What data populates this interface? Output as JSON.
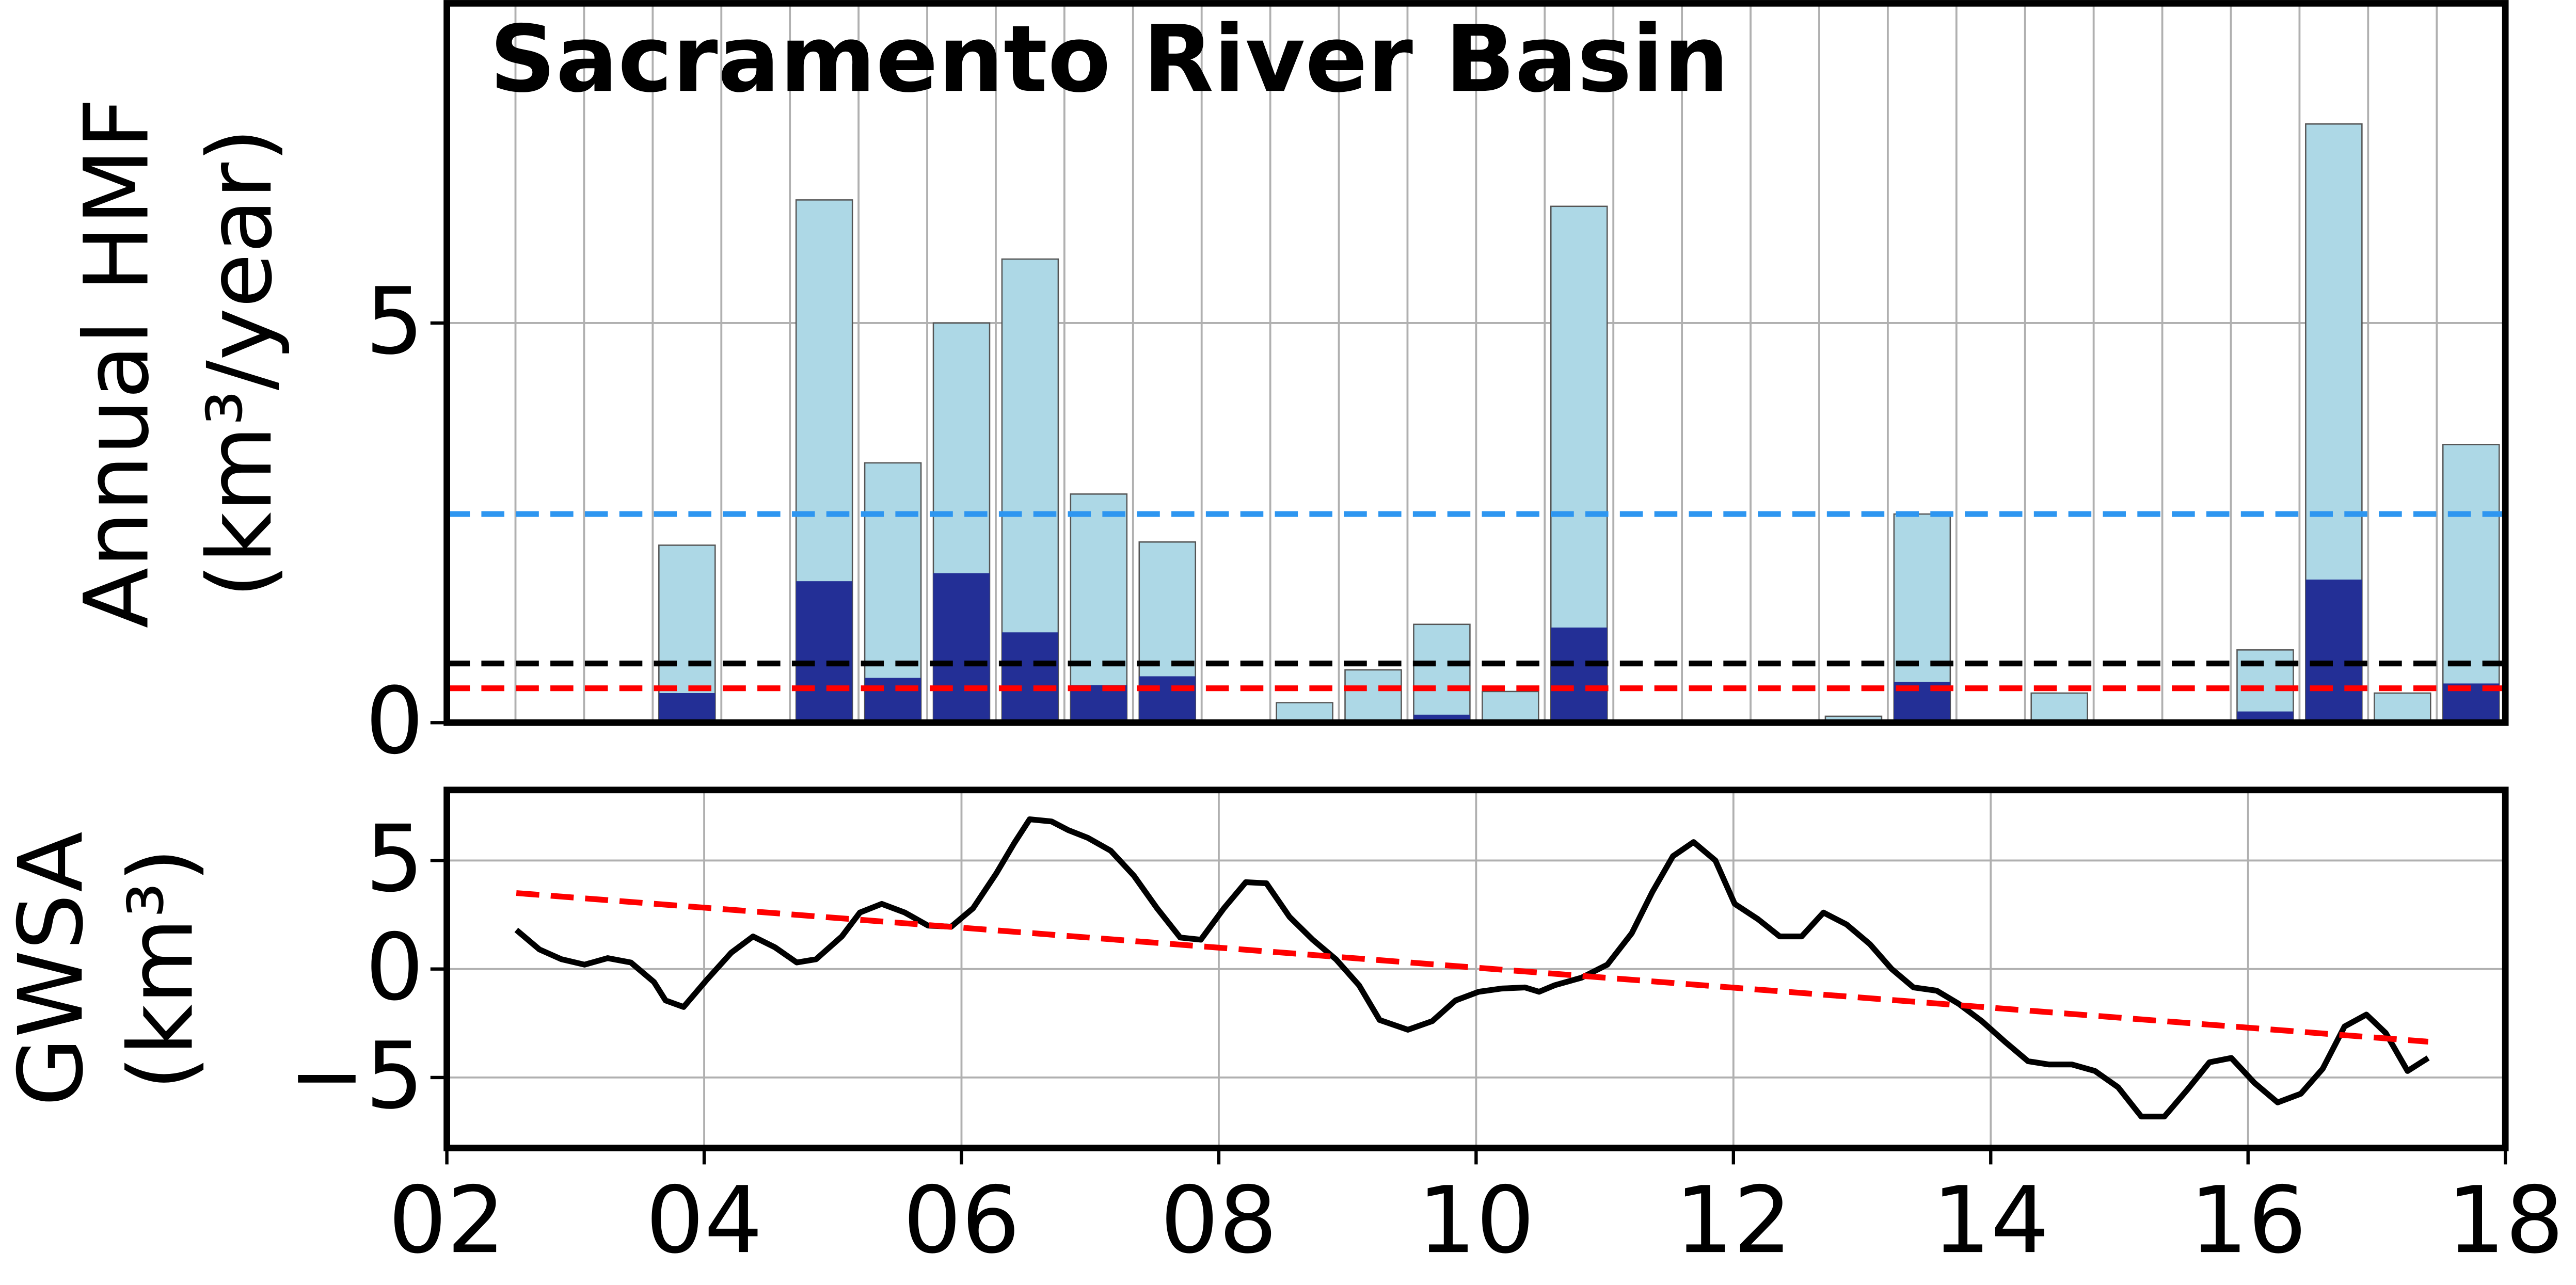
{
  "chart_data": [
    {
      "type": "bar",
      "title": "Sacramento River Basin",
      "ylabel": [
        "Annual HMF",
        "(km³/year)"
      ],
      "categories": [
        null,
        null,
        null,
        null,
        null,
        null,
        null,
        null,
        null,
        null,
        null,
        null,
        null,
        null,
        null,
        null,
        null,
        null,
        null,
        null,
        null,
        null,
        null,
        null,
        null,
        null,
        null,
        null,
        null,
        null
      ],
      "series": [
        {
          "color": "#add8e6",
          "values": [
            0,
            0,
            0,
            2.22,
            0,
            6.54,
            3.25,
            5.0,
            5.8,
            2.86,
            2.26,
            0,
            0.25,
            0.66,
            1.23,
            0.39,
            6.46,
            0,
            0,
            0,
            0.08,
            2.61,
            0,
            0.37,
            0,
            0,
            0.91,
            7.49,
            0.37,
            3.48
          ]
        },
        {
          "color": "#232f96",
          "values": [
            0,
            0,
            0,
            0.37,
            0,
            1.77,
            0.56,
            1.87,
            1.13,
            0.47,
            0.58,
            0,
            0,
            0,
            0.1,
            0,
            1.19,
            0,
            0,
            0,
            0,
            0.51,
            0,
            0,
            0,
            0,
            0.14,
            1.79,
            0,
            0.49
          ]
        }
      ],
      "hlines": [
        {
          "value": 2.61,
          "color": "#2e96f0"
        },
        {
          "value": 0.74,
          "color": "black"
        },
        {
          "value": 0.43,
          "color": "red"
        }
      ],
      "ylim": [
        0,
        9
      ],
      "yticks": [
        0,
        5
      ],
      "grid": true
    },
    {
      "type": "line",
      "ylabel": [
        "GWSA",
        "(km³)"
      ],
      "x": [
        2.54,
        2.72,
        2.89,
        3.07,
        3.25,
        3.43,
        3.61,
        3.7,
        3.84,
        4.02,
        4.21,
        4.38,
        4.55,
        4.72,
        4.87,
        5.07,
        5.21,
        5.38,
        5.56,
        5.74,
        5.92,
        6.09,
        6.27,
        6.41,
        6.53,
        6.7,
        6.83,
        6.98,
        7.16,
        7.34,
        7.52,
        7.7,
        7.86,
        8.04,
        8.21,
        8.37,
        8.55,
        8.73,
        8.91,
        9.09,
        9.25,
        9.47,
        9.66,
        9.84,
        10.02,
        10.2,
        10.38,
        10.49,
        10.61,
        10.82,
        11.02,
        11.21,
        11.37,
        11.53,
        11.69,
        11.86,
        12.01,
        12.19,
        12.36,
        12.53,
        12.7,
        12.88,
        13.06,
        13.23,
        13.4,
        13.58,
        13.75,
        13.93,
        14.11,
        14.29,
        14.45,
        14.63,
        14.81,
        14.99,
        15.17,
        15.35,
        15.53,
        15.7,
        15.87,
        16.05,
        16.23,
        16.41,
        16.58,
        16.75,
        16.92,
        17.07,
        17.24,
        17.4
      ],
      "series": [
        {
          "color": "black",
          "values": [
            1.8,
            0.9,
            0.45,
            0.2,
            0.5,
            0.3,
            -0.6,
            -1.45,
            -1.75,
            -0.5,
            0.75,
            1.5,
            1.0,
            0.3,
            0.45,
            1.5,
            2.6,
            3.0,
            2.6,
            2.0,
            1.95,
            2.8,
            4.4,
            5.8,
            6.9,
            6.8,
            6.4,
            6.05,
            5.45,
            4.3,
            2.8,
            1.45,
            1.35,
            2.8,
            4.0,
            3.95,
            2.4,
            1.35,
            0.45,
            -0.75,
            -2.35,
            -2.8,
            -2.4,
            -1.45,
            -1.05,
            -0.9,
            -0.85,
            -1.05,
            -0.75,
            -0.4,
            0.2,
            1.65,
            3.55,
            5.2,
            5.85,
            5.0,
            3.0,
            2.3,
            1.5,
            1.5,
            2.6,
            2.05,
            1.15,
            0,
            -0.85,
            -1.0,
            -1.6,
            -2.4,
            -3.35,
            -4.25,
            -4.4,
            -4.4,
            -4.7,
            -5.45,
            -6.8,
            -6.8,
            -5.55,
            -4.3,
            -4.1,
            -5.25,
            -6.15,
            -5.75,
            -4.6,
            -2.65,
            -2.1,
            -2.95,
            -4.7,
            -4.1
          ]
        }
      ],
      "trend": {
        "color": "red",
        "x": [
          2.54,
          17.4
        ],
        "values": [
          3.5,
          -3.35
        ]
      },
      "xlim": [
        2,
        18
      ],
      "xticks": [
        {
          "value": 2,
          "label": "02"
        },
        {
          "value": 4,
          "label": "04"
        },
        {
          "value": 6,
          "label": "06"
        },
        {
          "value": 8,
          "label": "08"
        },
        10,
        12,
        14,
        16,
        18
      ],
      "ylim": [
        -8.25,
        8.25
      ],
      "yticks": [
        {
          "value": -5,
          "label": "−5"
        },
        0,
        5
      ],
      "grid": true
    }
  ]
}
